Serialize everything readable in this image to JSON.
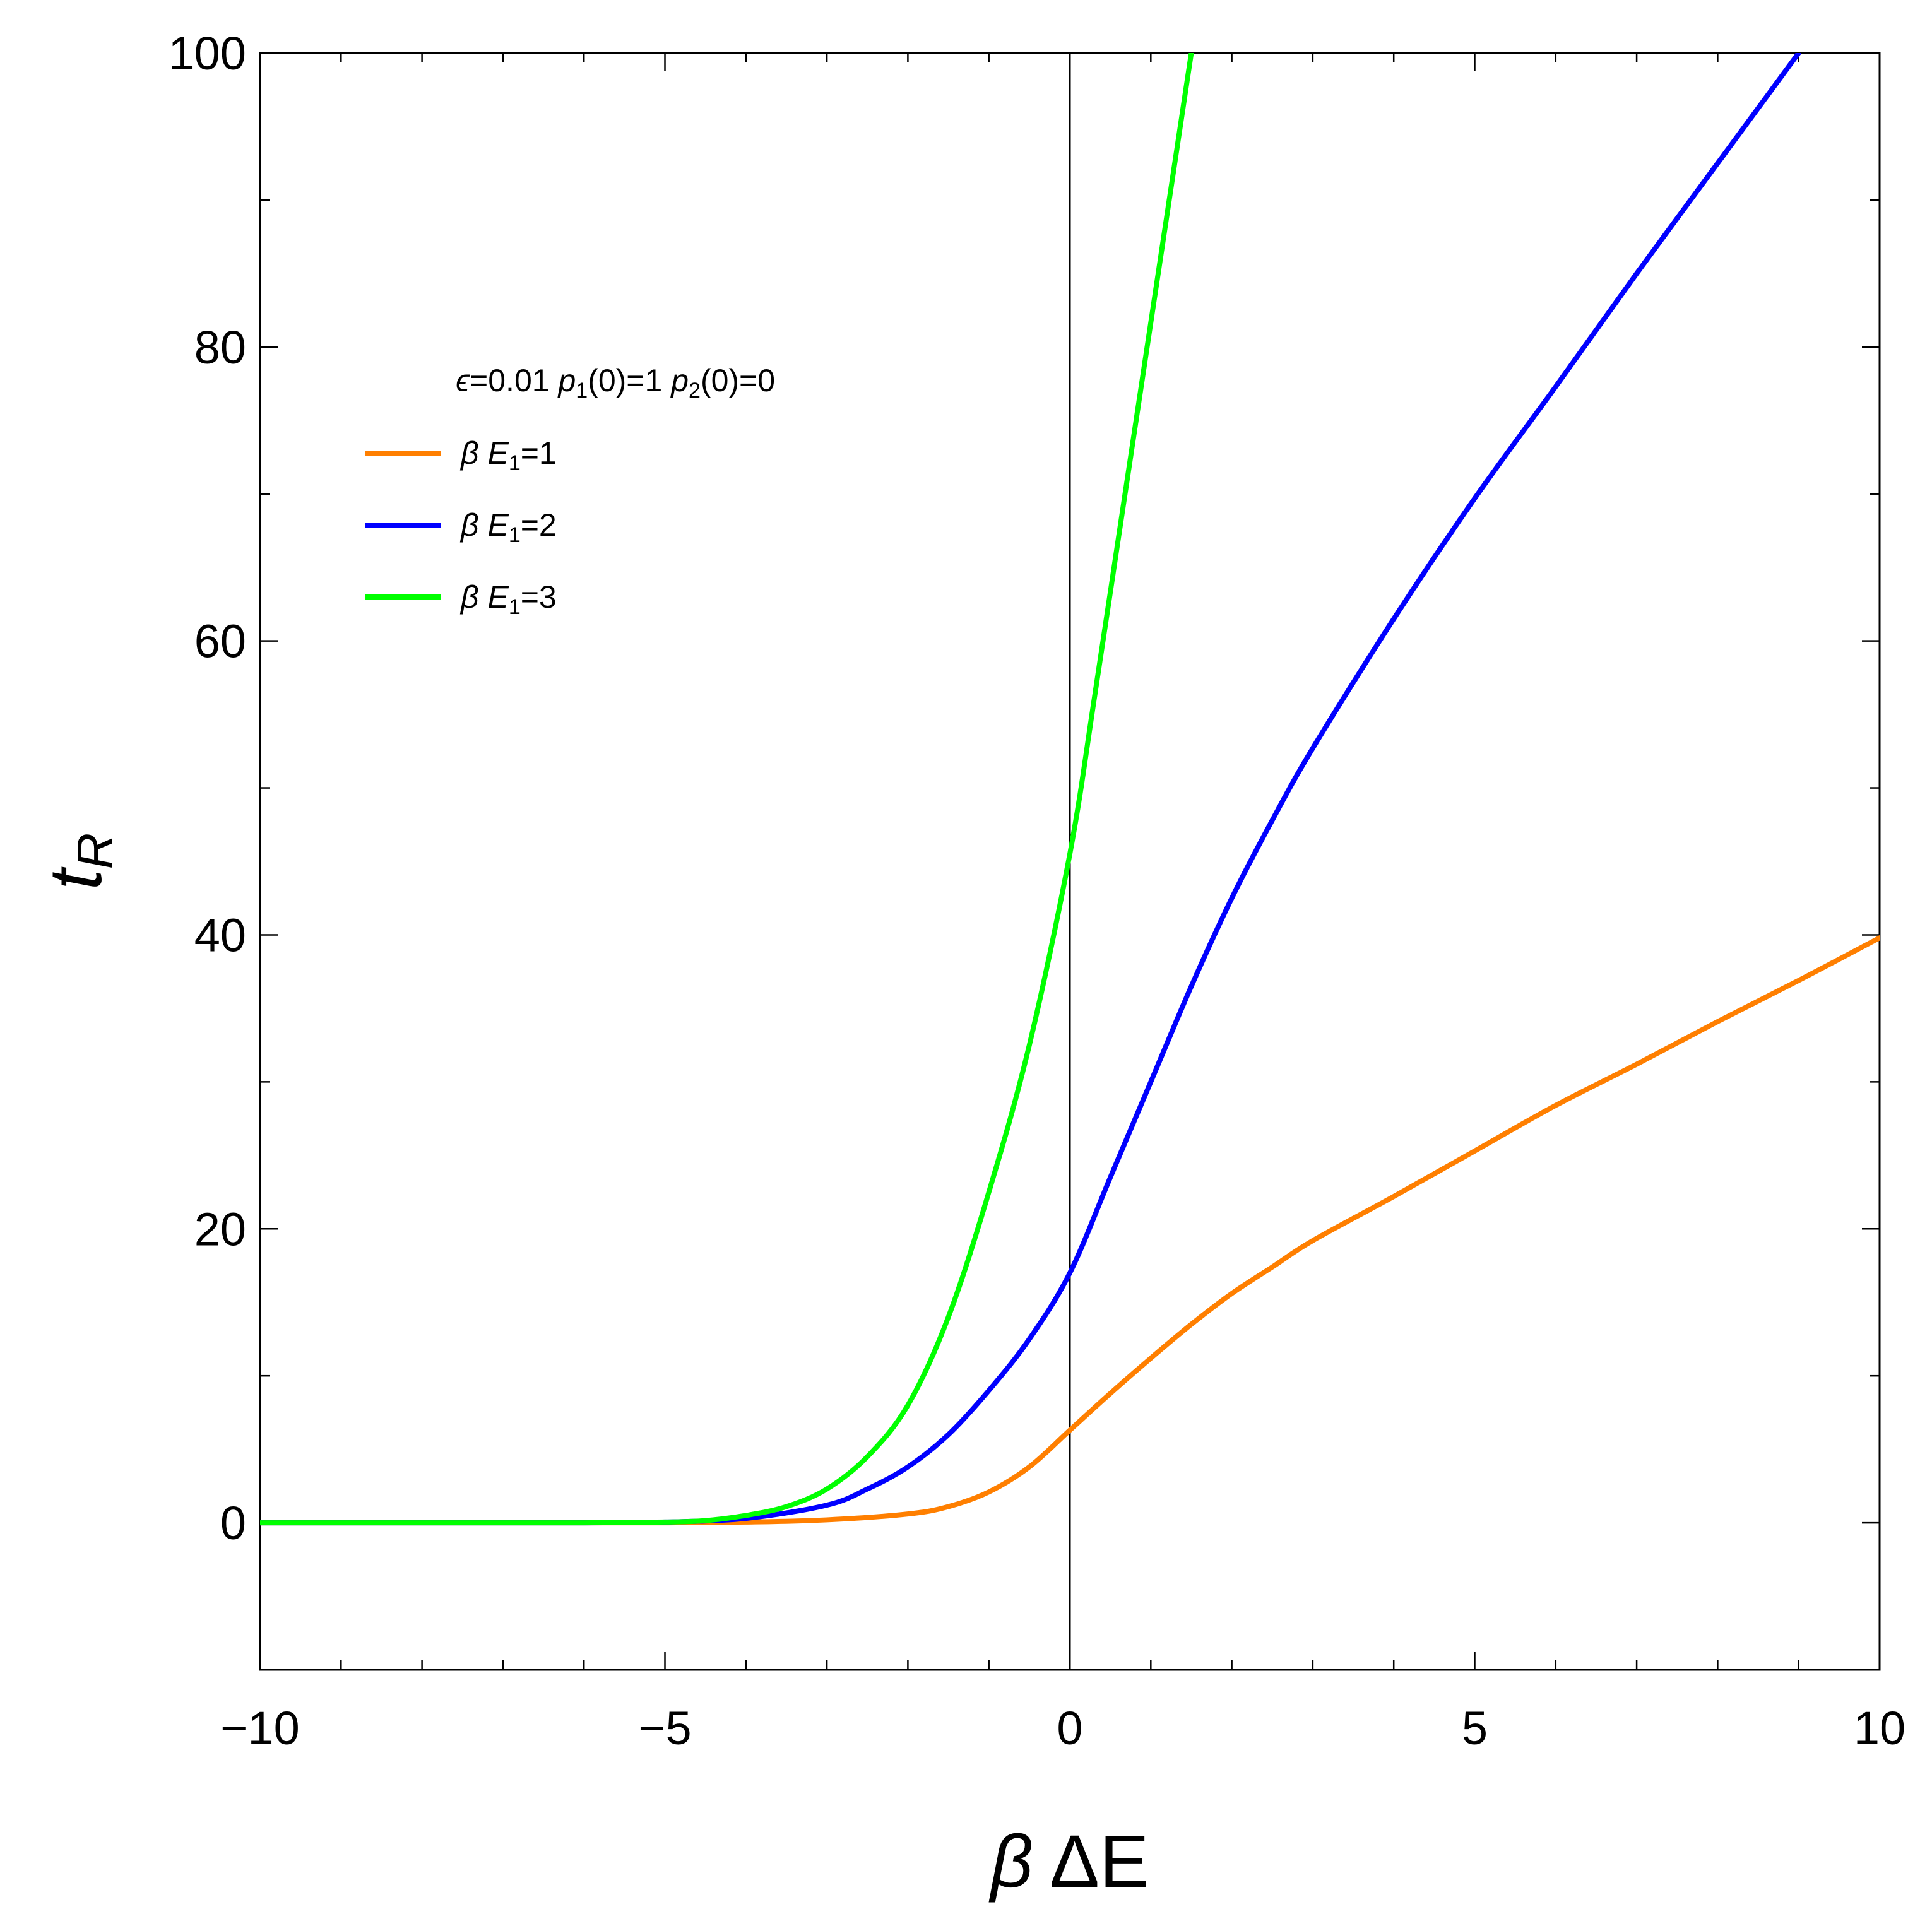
{
  "chart_data": {
    "type": "line",
    "xlabel": "β ΔE",
    "ylabel": "t_R",
    "xlim": [
      -10,
      10
    ],
    "ylim": [
      -10,
      100
    ],
    "x_ticks": [
      -10,
      -5,
      0,
      5,
      10
    ],
    "x_tick_labels": [
      "−10",
      "−5",
      "0",
      "5",
      "10"
    ],
    "y_ticks": [
      0,
      20,
      40,
      60,
      80,
      100
    ],
    "y_tick_labels": [
      "0",
      "20",
      "40",
      "60",
      "80",
      "100"
    ],
    "grid": false,
    "legend_placement": "top-left",
    "legend_title": "ϵ=0.01  p1(0)=1  p2(0)=0",
    "series": [
      {
        "name": "β E1=1",
        "color": "#FF7F00",
        "points": [
          [
            -10,
            0
          ],
          [
            -8,
            0
          ],
          [
            -6,
            0
          ],
          [
            -5,
            0
          ],
          [
            -4,
            0.05
          ],
          [
            -3,
            0.2
          ],
          [
            -2,
            0.6
          ],
          [
            -1.5,
            1.1
          ],
          [
            -1,
            2.1
          ],
          [
            -0.5,
            3.8
          ],
          [
            0,
            6.3
          ],
          [
            0.5,
            8.8
          ],
          [
            1,
            11.2
          ],
          [
            1.5,
            13.5
          ],
          [
            2,
            15.6
          ],
          [
            2.5,
            17.4
          ],
          [
            3,
            19.2
          ],
          [
            4,
            22.2
          ],
          [
            5,
            25.3
          ],
          [
            6,
            28.4
          ],
          [
            7,
            31.2
          ],
          [
            8,
            34.1
          ],
          [
            9,
            36.9
          ],
          [
            10,
            39.8
          ]
        ]
      },
      {
        "name": "β E1=2",
        "color": "#0000FF",
        "points": [
          [
            -10,
            0
          ],
          [
            -8,
            0
          ],
          [
            -6,
            0
          ],
          [
            -5,
            0.05
          ],
          [
            -4,
            0.3
          ],
          [
            -3,
            1.2
          ],
          [
            -2.5,
            2.3
          ],
          [
            -2,
            3.8
          ],
          [
            -1.5,
            6.0
          ],
          [
            -1,
            9.0
          ],
          [
            -0.5,
            12.5
          ],
          [
            0,
            17
          ],
          [
            0.5,
            23.5
          ],
          [
            1,
            30
          ],
          [
            1.5,
            36.5
          ],
          [
            2,
            42.5
          ],
          [
            2.5,
            47.8
          ],
          [
            3,
            52.7
          ],
          [
            4,
            61.5
          ],
          [
            5,
            69.7
          ],
          [
            6,
            77.3
          ],
          [
            7,
            85
          ],
          [
            8,
            92.5
          ],
          [
            9,
            100
          ]
        ]
      },
      {
        "name": "β E1=3",
        "color": "#00FF00",
        "points": [
          [
            -10,
            0
          ],
          [
            -8,
            0
          ],
          [
            -6,
            0
          ],
          [
            -5,
            0.05
          ],
          [
            -4.5,
            0.15
          ],
          [
            -4,
            0.5
          ],
          [
            -3.5,
            1.1
          ],
          [
            -3,
            2.3
          ],
          [
            -2.5,
            4.5
          ],
          [
            -2,
            8.0
          ],
          [
            -1.5,
            14.0
          ],
          [
            -1,
            22.5
          ],
          [
            -0.5,
            32.5
          ],
          [
            0,
            45.5
          ],
          [
            0.3,
            56
          ],
          [
            0.6,
            67
          ],
          [
            0.9,
            78
          ],
          [
            1.2,
            89
          ],
          [
            1.5,
            100
          ]
        ]
      }
    ]
  }
}
